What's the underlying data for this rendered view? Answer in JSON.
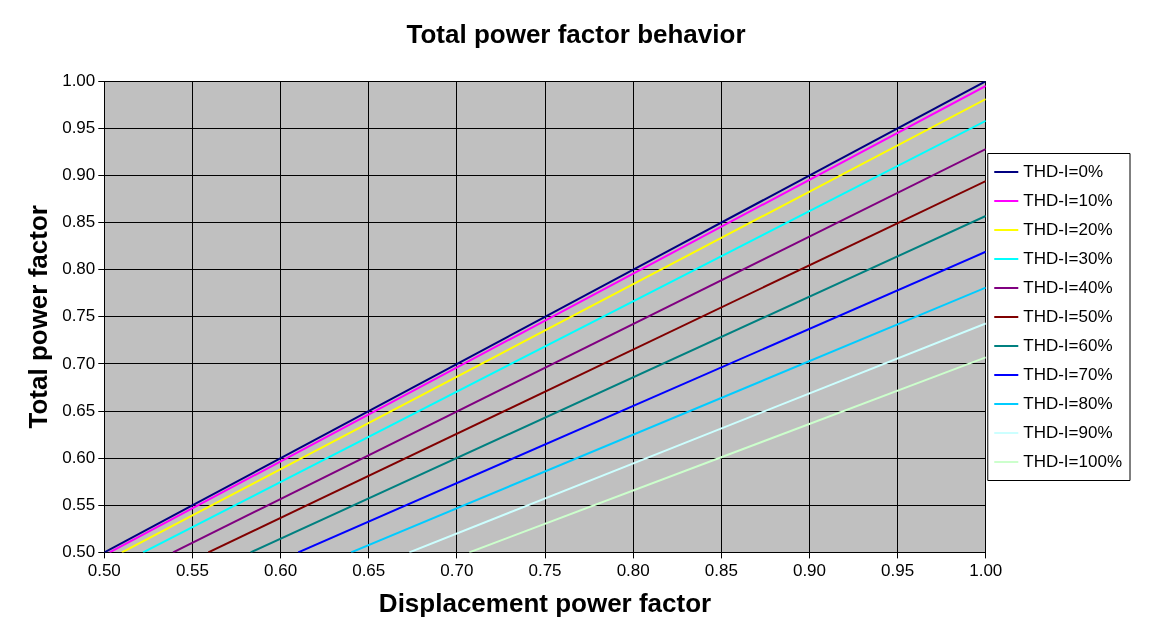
{
  "chart_data": {
    "type": "line",
    "title": "Total power factor behavior",
    "xlabel": "Displacement power factor",
    "ylabel": "Total power factor",
    "xlim": [
      0.5,
      1.0
    ],
    "ylim": [
      0.5,
      1.0
    ],
    "xticks": [
      {
        "value": 0.5,
        "label": "0.50"
      },
      {
        "value": 0.55,
        "label": "0.55"
      },
      {
        "value": 0.6,
        "label": "0.60"
      },
      {
        "value": 0.65,
        "label": "0.65"
      },
      {
        "value": 0.7,
        "label": "0.70"
      },
      {
        "value": 0.75,
        "label": "0.75"
      },
      {
        "value": 0.8,
        "label": "0.80"
      },
      {
        "value": 0.85,
        "label": "0.85"
      },
      {
        "value": 0.9,
        "label": "0.90"
      },
      {
        "value": 0.95,
        "label": "0.95"
      },
      {
        "value": 1.0,
        "label": "1.00"
      }
    ],
    "yticks": [
      {
        "value": 0.5,
        "label": "0.50"
      },
      {
        "value": 0.55,
        "label": "0.55"
      },
      {
        "value": 0.6,
        "label": "0.60"
      },
      {
        "value": 0.65,
        "label": "0.65"
      },
      {
        "value": 0.7,
        "label": "0.70"
      },
      {
        "value": 0.75,
        "label": "0.75"
      },
      {
        "value": 0.8,
        "label": "0.80"
      },
      {
        "value": 0.85,
        "label": "0.85"
      },
      {
        "value": 0.9,
        "label": "0.90"
      },
      {
        "value": 0.95,
        "label": "0.95"
      },
      {
        "value": 1.0,
        "label": "1.00"
      }
    ],
    "grid": true,
    "legend": "right",
    "marker": "none",
    "series": [
      {
        "name": "THD-I=0%",
        "color": "#000080",
        "x": [
          0.5,
          1.0
        ],
        "values": [
          0.5,
          1.0
        ]
      },
      {
        "name": "THD-I=10%",
        "color": "#ff00ff",
        "x": [
          0.503,
          1.0
        ],
        "values": [
          0.5,
          0.995
        ]
      },
      {
        "name": "THD-I=20%",
        "color": "#ffff00",
        "x": [
          0.51,
          1.0
        ],
        "values": [
          0.5,
          0.981
        ]
      },
      {
        "name": "THD-I=30%",
        "color": "#00ffff",
        "x": [
          0.522,
          1.0
        ],
        "values": [
          0.5,
          0.958
        ]
      },
      {
        "name": "THD-I=40%",
        "color": "#800080",
        "x": [
          0.539,
          1.0
        ],
        "values": [
          0.5,
          0.928
        ]
      },
      {
        "name": "THD-I=50%",
        "color": "#800000",
        "x": [
          0.559,
          1.0
        ],
        "values": [
          0.5,
          0.894
        ]
      },
      {
        "name": "THD-I=60%",
        "color": "#008080",
        "x": [
          0.583,
          1.0
        ],
        "values": [
          0.5,
          0.857
        ]
      },
      {
        "name": "THD-I=70%",
        "color": "#0000ff",
        "x": [
          0.61,
          1.0
        ],
        "values": [
          0.5,
          0.819
        ]
      },
      {
        "name": "THD-I=80%",
        "color": "#00ccff",
        "x": [
          0.64,
          1.0
        ],
        "values": [
          0.5,
          0.781
        ]
      },
      {
        "name": "THD-I=90%",
        "color": "#ccffff",
        "x": [
          0.673,
          1.0
        ],
        "values": [
          0.5,
          0.743
        ]
      },
      {
        "name": "THD-I=100%",
        "color": "#ccffcc",
        "x": [
          0.707,
          1.0
        ],
        "values": [
          0.5,
          0.707
        ]
      }
    ]
  }
}
